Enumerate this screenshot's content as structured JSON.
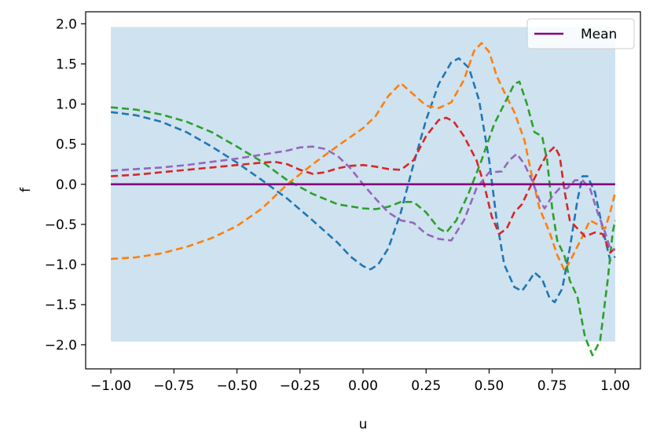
{
  "chart_data": {
    "type": "line",
    "xlabel": "u",
    "ylabel": "f",
    "xlim": [
      -1.1,
      1.1
    ],
    "ylim": [
      -2.3,
      2.15
    ],
    "x_ticks": [
      -1.0,
      -0.75,
      -0.5,
      -0.25,
      0.0,
      0.25,
      0.5,
      0.75,
      1.0
    ],
    "x_tick_labels": [
      "−1.00",
      "−0.75",
      "−0.50",
      "−0.25",
      "0.00",
      "0.25",
      "0.50",
      "0.75",
      "1.00"
    ],
    "y_ticks": [
      -2.0,
      -1.5,
      -1.0,
      -0.5,
      0.0,
      0.5,
      1.0,
      1.5,
      2.0
    ],
    "y_tick_labels": [
      "−2.0",
      "−1.5",
      "−1.0",
      "−0.5",
      "0.0",
      "0.5",
      "1.0",
      "1.5",
      "2.0"
    ],
    "grid": false,
    "legend": {
      "placement": "top-right",
      "entries": [
        "Mean"
      ]
    },
    "band": {
      "x": [
        -1.0,
        1.0
      ],
      "lower": -1.96,
      "upper": 1.96,
      "color": "#cfe2ef"
    },
    "mean": {
      "name": "Mean",
      "x": [
        -1.0,
        1.0
      ],
      "y": [
        0.0,
        0.0
      ],
      "color": "#800080"
    },
    "series": [
      {
        "color": "#1f77b4",
        "points": [
          [
            -1.0,
            0.9
          ],
          [
            -0.9,
            0.86
          ],
          [
            -0.8,
            0.78
          ],
          [
            -0.7,
            0.65
          ],
          [
            -0.6,
            0.47
          ],
          [
            -0.5,
            0.27
          ],
          [
            -0.4,
            0.05
          ],
          [
            -0.3,
            -0.18
          ],
          [
            -0.2,
            -0.45
          ],
          [
            -0.1,
            -0.73
          ],
          [
            -0.05,
            -0.9
          ],
          [
            0.0,
            -1.02
          ],
          [
            0.03,
            -1.06
          ],
          [
            0.06,
            -1.0
          ],
          [
            0.1,
            -0.8
          ],
          [
            0.15,
            -0.35
          ],
          [
            0.2,
            0.25
          ],
          [
            0.25,
            0.8
          ],
          [
            0.3,
            1.25
          ],
          [
            0.35,
            1.52
          ],
          [
            0.38,
            1.57
          ],
          [
            0.42,
            1.45
          ],
          [
            0.46,
            1.05
          ],
          [
            0.5,
            0.3
          ],
          [
            0.53,
            -0.45
          ],
          [
            0.56,
            -1.0
          ],
          [
            0.6,
            -1.28
          ],
          [
            0.63,
            -1.33
          ],
          [
            0.66,
            -1.2
          ],
          [
            0.68,
            -1.1
          ],
          [
            0.71,
            -1.18
          ],
          [
            0.74,
            -1.42
          ],
          [
            0.76,
            -1.47
          ],
          [
            0.79,
            -1.3
          ],
          [
            0.82,
            -0.8
          ],
          [
            0.85,
            -0.2
          ],
          [
            0.87,
            0.1
          ],
          [
            0.89,
            0.1
          ],
          [
            0.92,
            -0.1
          ],
          [
            0.95,
            -0.55
          ],
          [
            0.98,
            -0.95
          ],
          [
            1.0,
            -0.9
          ]
        ]
      },
      {
        "color": "#ff7f0e",
        "points": [
          [
            -1.0,
            -0.93
          ],
          [
            -0.9,
            -0.91
          ],
          [
            -0.8,
            -0.86
          ],
          [
            -0.7,
            -0.78
          ],
          [
            -0.6,
            -0.67
          ],
          [
            -0.5,
            -0.52
          ],
          [
            -0.4,
            -0.3
          ],
          [
            -0.3,
            0.0
          ],
          [
            -0.2,
            0.25
          ],
          [
            -0.1,
            0.48
          ],
          [
            0.0,
            0.7
          ],
          [
            0.05,
            0.85
          ],
          [
            0.1,
            1.1
          ],
          [
            0.15,
            1.26
          ],
          [
            0.2,
            1.12
          ],
          [
            0.25,
            0.98
          ],
          [
            0.3,
            0.95
          ],
          [
            0.35,
            1.02
          ],
          [
            0.4,
            1.3
          ],
          [
            0.44,
            1.66
          ],
          [
            0.47,
            1.76
          ],
          [
            0.5,
            1.65
          ],
          [
            0.53,
            1.35
          ],
          [
            0.56,
            1.15
          ],
          [
            0.6,
            0.9
          ],
          [
            0.64,
            0.55
          ],
          [
            0.67,
            0.1
          ],
          [
            0.7,
            -0.3
          ],
          [
            0.74,
            -0.6
          ],
          [
            0.77,
            -0.88
          ],
          [
            0.8,
            -1.08
          ],
          [
            0.83,
            -0.9
          ],
          [
            0.87,
            -0.65
          ],
          [
            0.9,
            -0.45
          ],
          [
            0.93,
            -0.5
          ],
          [
            0.96,
            -0.55
          ],
          [
            0.98,
            -0.35
          ],
          [
            1.0,
            -0.1
          ]
        ]
      },
      {
        "color": "#2ca02c",
        "points": [
          [
            -1.0,
            0.96
          ],
          [
            -0.9,
            0.93
          ],
          [
            -0.8,
            0.87
          ],
          [
            -0.7,
            0.78
          ],
          [
            -0.6,
            0.65
          ],
          [
            -0.5,
            0.47
          ],
          [
            -0.4,
            0.28
          ],
          [
            -0.3,
            0.05
          ],
          [
            -0.2,
            -0.12
          ],
          [
            -0.1,
            -0.25
          ],
          [
            0.0,
            -0.3
          ],
          [
            0.05,
            -0.31
          ],
          [
            0.1,
            -0.28
          ],
          [
            0.15,
            -0.22
          ],
          [
            0.2,
            -0.22
          ],
          [
            0.25,
            -0.35
          ],
          [
            0.3,
            -0.55
          ],
          [
            0.33,
            -0.6
          ],
          [
            0.37,
            -0.45
          ],
          [
            0.42,
            -0.1
          ],
          [
            0.47,
            0.3
          ],
          [
            0.52,
            0.75
          ],
          [
            0.56,
            1.0
          ],
          [
            0.6,
            1.25
          ],
          [
            0.62,
            1.28
          ],
          [
            0.65,
            1.0
          ],
          [
            0.68,
            0.65
          ],
          [
            0.71,
            0.6
          ],
          [
            0.73,
            0.3
          ],
          [
            0.75,
            -0.3
          ],
          [
            0.77,
            -0.7
          ],
          [
            0.8,
            -0.9
          ],
          [
            0.82,
            -1.2
          ],
          [
            0.85,
            -1.4
          ],
          [
            0.88,
            -1.9
          ],
          [
            0.91,
            -2.13
          ],
          [
            0.94,
            -1.95
          ],
          [
            0.97,
            -1.2
          ],
          [
            0.99,
            -0.6
          ],
          [
            1.0,
            -0.45
          ]
        ]
      },
      {
        "color": "#d62728",
        "points": [
          [
            -1.0,
            0.1
          ],
          [
            -0.9,
            0.12
          ],
          [
            -0.8,
            0.15
          ],
          [
            -0.7,
            0.18
          ],
          [
            -0.6,
            0.21
          ],
          [
            -0.5,
            0.24
          ],
          [
            -0.4,
            0.27
          ],
          [
            -0.35,
            0.28
          ],
          [
            -0.3,
            0.25
          ],
          [
            -0.25,
            0.18
          ],
          [
            -0.2,
            0.13
          ],
          [
            -0.15,
            0.15
          ],
          [
            -0.1,
            0.2
          ],
          [
            -0.05,
            0.23
          ],
          [
            0.0,
            0.24
          ],
          [
            0.05,
            0.22
          ],
          [
            0.1,
            0.19
          ],
          [
            0.15,
            0.18
          ],
          [
            0.2,
            0.3
          ],
          [
            0.25,
            0.6
          ],
          [
            0.3,
            0.8
          ],
          [
            0.33,
            0.83
          ],
          [
            0.36,
            0.78
          ],
          [
            0.4,
            0.6
          ],
          [
            0.45,
            0.3
          ],
          [
            0.48,
            0.0
          ],
          [
            0.51,
            -0.4
          ],
          [
            0.54,
            -0.62
          ],
          [
            0.57,
            -0.55
          ],
          [
            0.6,
            -0.35
          ],
          [
            0.63,
            -0.25
          ],
          [
            0.66,
            -0.05
          ],
          [
            0.7,
            0.2
          ],
          [
            0.73,
            0.38
          ],
          [
            0.76,
            0.47
          ],
          [
            0.78,
            0.35
          ],
          [
            0.8,
            -0.1
          ],
          [
            0.82,
            -0.45
          ],
          [
            0.85,
            -0.55
          ],
          [
            0.88,
            -0.65
          ],
          [
            0.92,
            -0.6
          ],
          [
            0.95,
            -0.62
          ],
          [
            0.98,
            -0.85
          ],
          [
            1.0,
            -0.8
          ]
        ]
      },
      {
        "color": "#9467bd",
        "points": [
          [
            -1.0,
            0.17
          ],
          [
            -0.9,
            0.19
          ],
          [
            -0.8,
            0.21
          ],
          [
            -0.7,
            0.24
          ],
          [
            -0.6,
            0.28
          ],
          [
            -0.5,
            0.32
          ],
          [
            -0.4,
            0.37
          ],
          [
            -0.3,
            0.42
          ],
          [
            -0.25,
            0.46
          ],
          [
            -0.2,
            0.47
          ],
          [
            -0.15,
            0.44
          ],
          [
            -0.1,
            0.35
          ],
          [
            -0.05,
            0.2
          ],
          [
            0.0,
            0.0
          ],
          [
            0.05,
            -0.18
          ],
          [
            0.1,
            -0.35
          ],
          [
            0.15,
            -0.45
          ],
          [
            0.2,
            -0.48
          ],
          [
            0.25,
            -0.62
          ],
          [
            0.3,
            -0.68
          ],
          [
            0.35,
            -0.7
          ],
          [
            0.4,
            -0.45
          ],
          [
            0.45,
            -0.05
          ],
          [
            0.5,
            0.15
          ],
          [
            0.55,
            0.16
          ],
          [
            0.58,
            0.3
          ],
          [
            0.61,
            0.38
          ],
          [
            0.64,
            0.25
          ],
          [
            0.67,
            0.05
          ],
          [
            0.7,
            -0.2
          ],
          [
            0.72,
            -0.3
          ],
          [
            0.75,
            -0.15
          ],
          [
            0.78,
            -0.05
          ],
          [
            0.81,
            -0.05
          ],
          [
            0.84,
            0.05
          ],
          [
            0.87,
            0.05
          ],
          [
            0.9,
            -0.05
          ],
          [
            0.93,
            -0.35
          ],
          [
            0.96,
            -0.6
          ],
          [
            0.98,
            -0.8
          ],
          [
            1.0,
            -0.82
          ]
        ]
      }
    ]
  }
}
